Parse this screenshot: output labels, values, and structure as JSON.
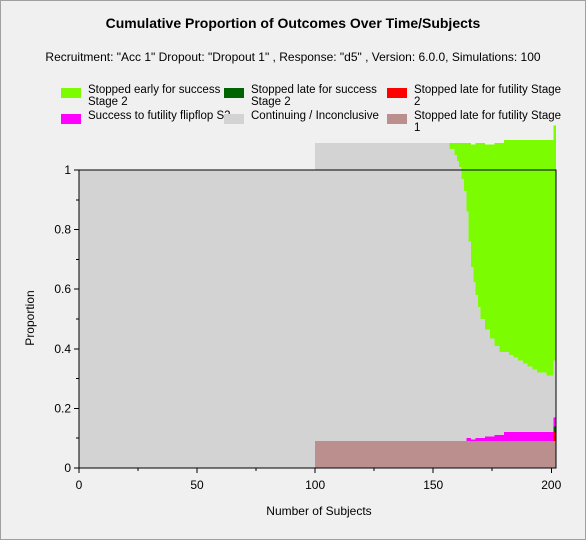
{
  "chart_data": {
    "type": "area",
    "title": "Cumulative Proportion of Outcomes Over Time/Subjects",
    "subtitle": "Recruitment: \"Acc 1\" Dropout: \"Dropout 1\" , Response: \"d5\" , Version: 6.0.0, Simulations: 100",
    "xlabel": "Number of Subjects",
    "ylabel": "Proportion",
    "xlim": [
      0,
      202
    ],
    "ylim": [
      0,
      1
    ],
    "x_ticks": [
      "0",
      "50",
      "100",
      "150",
      "200"
    ],
    "y_ticks": [
      "0",
      "0.2",
      "0.4",
      "0.6",
      "0.8",
      "1"
    ],
    "grid": false,
    "legend_position": "top",
    "legend": [
      {
        "label": "Stopped early for success Stage 2",
        "color": "#7cfc00"
      },
      {
        "label": "Stopped late for success Stage 2",
        "color": "#006400"
      },
      {
        "label": "Stopped late for futility Stage 2",
        "color": "#ff0000"
      },
      {
        "label": "Success to futility flipflop S2",
        "color": "#ff00ff"
      },
      {
        "label": "Continuing / Inconclusive",
        "color": "#d3d3d3"
      },
      {
        "label": "Stopped late for futility Stage 1",
        "color": "#bc8f8f"
      }
    ],
    "series": [
      {
        "name": "Stopped late for futility Stage 1",
        "color": "#bc8f8f",
        "x": [
          0,
          99,
          100,
          202
        ],
        "values": [
          0,
          0,
          0.09,
          0.09
        ]
      },
      {
        "name": "Stopped late for futility Stage 2",
        "color": "#ff0000",
        "x": [
          0,
          200,
          201,
          202
        ],
        "values": [
          0,
          0,
          0.03,
          0.03
        ]
      },
      {
        "name": "Stopped late for success Stage 2",
        "color": "#006400",
        "x": [
          0,
          200,
          201,
          202
        ],
        "values": [
          0,
          0,
          0.02,
          0.02
        ]
      },
      {
        "name": "Success to futility flipflop S2",
        "color": "#ff00ff",
        "x": [
          0,
          162,
          164,
          166,
          168,
          170,
          172,
          174,
          176,
          178,
          180,
          184,
          188,
          192,
          196,
          198,
          200,
          201,
          202
        ],
        "values": [
          0,
          0,
          0.01,
          0.005,
          0.01,
          0.01,
          0.015,
          0.015,
          0.02,
          0.02,
          0.03,
          0.03,
          0.03,
          0.03,
          0.03,
          0.03,
          0.03,
          0.03,
          0.03
        ]
      },
      {
        "name": "Continuing / Inconclusive",
        "color": "#d3d3d3",
        "x": [
          0,
          155,
          157,
          159,
          160,
          161,
          162,
          163,
          164,
          165,
          166,
          167,
          168,
          169,
          170,
          172,
          174,
          176,
          178,
          180,
          182,
          184,
          186,
          188,
          190,
          192,
          194,
          196,
          198,
          200,
          201,
          202
        ],
        "values": [
          1,
          1,
          0.98,
          0.96,
          0.94,
          0.92,
          0.88,
          0.84,
          0.76,
          0.66,
          0.58,
          0.53,
          0.48,
          0.44,
          0.4,
          0.36,
          0.33,
          0.3,
          0.28,
          0.27,
          0.26,
          0.25,
          0.24,
          0.23,
          0.22,
          0.21,
          0.2,
          0.2,
          0.19,
          0.19,
          0.19,
          0.19
        ]
      },
      {
        "name": "Stopped early for success Stage 2",
        "color": "#7cfc00",
        "x": [
          0,
          155,
          157,
          159,
          160,
          161,
          162,
          163,
          164,
          165,
          166,
          167,
          168,
          169,
          170,
          172,
          174,
          176,
          178,
          180,
          182,
          184,
          186,
          188,
          190,
          192,
          194,
          196,
          198,
          200,
          201,
          202
        ],
        "values": [
          0,
          0,
          0.02,
          0.04,
          0.06,
          0.08,
          0.12,
          0.16,
          0.23,
          0.33,
          0.41,
          0.46,
          0.51,
          0.55,
          0.59,
          0.62,
          0.65,
          0.68,
          0.7,
          0.71,
          0.72,
          0.73,
          0.74,
          0.75,
          0.76,
          0.77,
          0.78,
          0.78,
          0.79,
          0.79,
          0.79,
          0.79
        ]
      }
    ]
  }
}
